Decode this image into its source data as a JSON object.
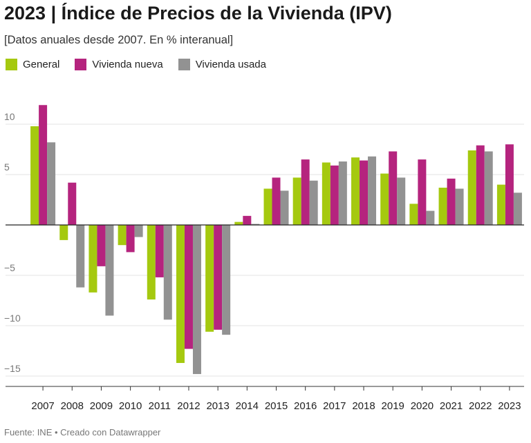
{
  "header": {
    "title": "2023 | Índice de Precios de la Vivienda (IPV)",
    "subtitle": "[Datos anuales desde 2007. En % interanual]"
  },
  "footer": {
    "source": "Fuente: INE • Creado con Datawrapper"
  },
  "chart_data": {
    "type": "bar",
    "title": "2023 | Índice de Precios de la Vivienda (IPV)",
    "subtitle": "[Datos anuales desde 2007. En % interanual]",
    "xlabel": "",
    "ylabel": "",
    "ylim": [
      -15,
      12
    ],
    "yticks": [
      -15,
      -10,
      -5,
      0,
      5,
      10
    ],
    "yticklabels": [
      "−15",
      "−10",
      "−5",
      "",
      "5",
      "10"
    ],
    "grid": true,
    "legend_position": "top-left",
    "categories": [
      "2007",
      "2008",
      "2009",
      "2010",
      "2011",
      "2012",
      "2013",
      "2014",
      "2015",
      "2016",
      "2017",
      "2018",
      "2019",
      "2020",
      "2021",
      "2022",
      "2023"
    ],
    "series": [
      {
        "name": "General",
        "color": "#a5c90f",
        "values": [
          9.8,
          -1.5,
          -6.7,
          -2.0,
          -7.4,
          -13.7,
          -10.6,
          0.3,
          3.6,
          4.7,
          6.2,
          6.7,
          5.1,
          2.1,
          3.7,
          7.4,
          4.0
        ]
      },
      {
        "name": "Vivienda nueva",
        "color": "#b5247e",
        "values": [
          11.9,
          4.2,
          -4.1,
          -2.7,
          -5.2,
          -12.3,
          -10.4,
          0.9,
          4.7,
          6.5,
          5.9,
          6.4,
          7.3,
          6.5,
          4.6,
          7.9,
          8.0
        ]
      },
      {
        "name": "Vivienda usada",
        "color": "#929292",
        "values": [
          8.2,
          -6.2,
          -9.0,
          -1.2,
          -9.4,
          -14.8,
          -10.9,
          0.1,
          3.4,
          4.4,
          6.3,
          6.8,
          4.7,
          1.4,
          3.6,
          7.3,
          3.2
        ]
      }
    ]
  }
}
